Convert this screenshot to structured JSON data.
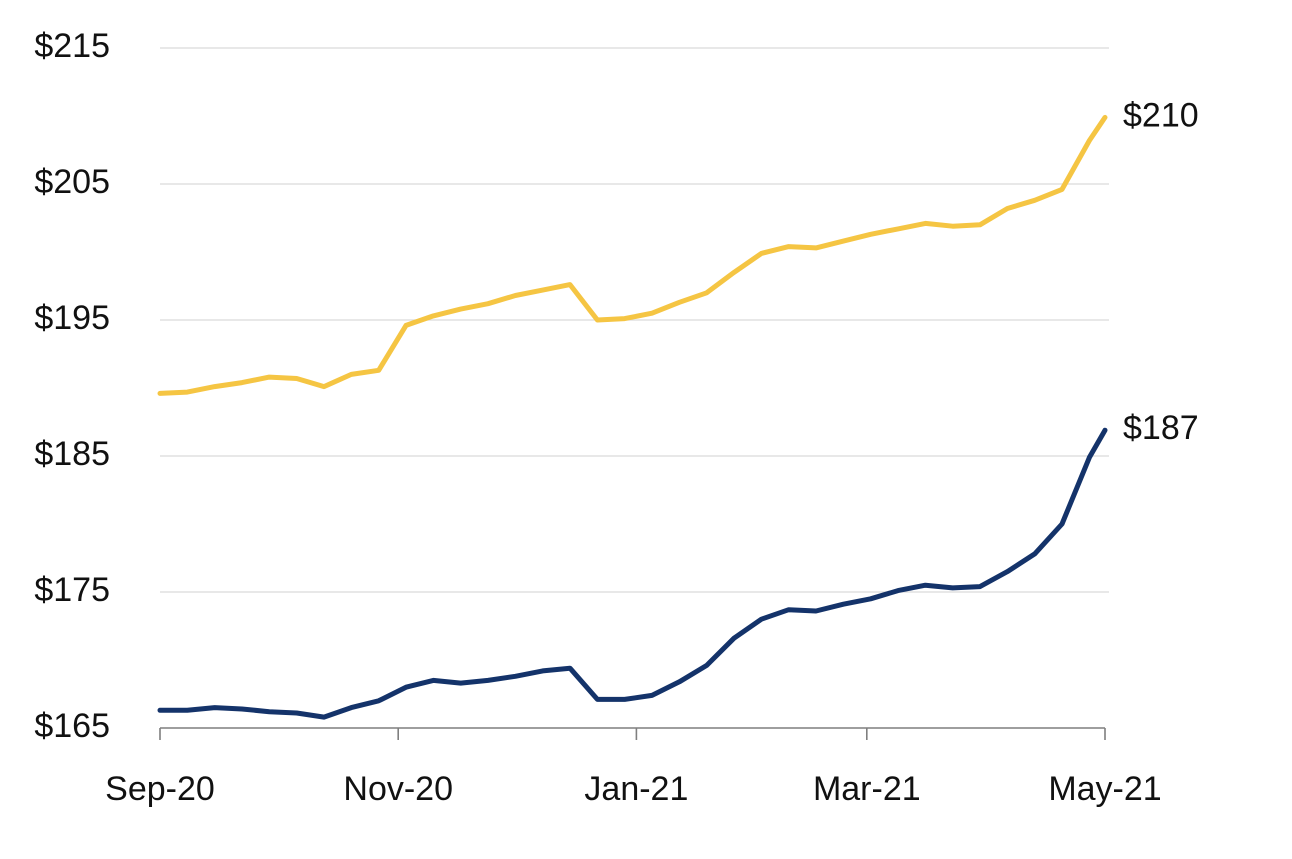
{
  "chart_data": {
    "type": "line",
    "y_tick_labels": [
      "$165",
      "$175",
      "$185",
      "$195",
      "$205",
      "$215"
    ],
    "y_tick_values": [
      165,
      175,
      185,
      195,
      205,
      215
    ],
    "ylim": [
      165,
      215
    ],
    "x_tick_labels": [
      "Sep-20",
      "Nov-20",
      "Jan-21",
      "Mar-21",
      "May-21"
    ],
    "x_tick_dates": [
      "2020-09-01",
      "2020-11-01",
      "2021-01-01",
      "2021-03-01",
      "2021-05-01"
    ],
    "xlim": [
      "2020-09-01",
      "2021-05-01"
    ],
    "grid": true,
    "series": [
      {
        "color": "#f5c543",
        "end_label": "$210",
        "points": [
          [
            "2020-09-01",
            189.6
          ],
          [
            "2020-09-08",
            189.7
          ],
          [
            "2020-09-15",
            190.1
          ],
          [
            "2020-09-22",
            190.4
          ],
          [
            "2020-09-29",
            190.8
          ],
          [
            "2020-10-06",
            190.7
          ],
          [
            "2020-10-13",
            190.1
          ],
          [
            "2020-10-20",
            191.0
          ],
          [
            "2020-10-27",
            191.3
          ],
          [
            "2020-11-03",
            194.6
          ],
          [
            "2020-11-10",
            195.3
          ],
          [
            "2020-11-17",
            195.8
          ],
          [
            "2020-11-24",
            196.2
          ],
          [
            "2020-12-01",
            196.8
          ],
          [
            "2020-12-08",
            197.2
          ],
          [
            "2020-12-15",
            197.6
          ],
          [
            "2020-12-22",
            195.0
          ],
          [
            "2020-12-29",
            195.1
          ],
          [
            "2021-01-05",
            195.5
          ],
          [
            "2021-01-12",
            196.3
          ],
          [
            "2021-01-19",
            197.0
          ],
          [
            "2021-01-26",
            198.5
          ],
          [
            "2021-02-02",
            199.9
          ],
          [
            "2021-02-09",
            200.4
          ],
          [
            "2021-02-16",
            200.3
          ],
          [
            "2021-02-23",
            200.8
          ],
          [
            "2021-03-02",
            201.3
          ],
          [
            "2021-03-09",
            201.7
          ],
          [
            "2021-03-16",
            202.1
          ],
          [
            "2021-03-23",
            201.9
          ],
          [
            "2021-03-30",
            202.0
          ],
          [
            "2021-04-06",
            203.2
          ],
          [
            "2021-04-13",
            203.8
          ],
          [
            "2021-04-20",
            204.6
          ],
          [
            "2021-04-27",
            208.2
          ],
          [
            "2021-05-01",
            209.9
          ]
        ]
      },
      {
        "color": "#14336a",
        "end_label": "$187",
        "points": [
          [
            "2020-09-01",
            166.3
          ],
          [
            "2020-09-08",
            166.3
          ],
          [
            "2020-09-15",
            166.5
          ],
          [
            "2020-09-22",
            166.4
          ],
          [
            "2020-09-29",
            166.2
          ],
          [
            "2020-10-06",
            166.1
          ],
          [
            "2020-10-13",
            165.8
          ],
          [
            "2020-10-20",
            166.5
          ],
          [
            "2020-10-27",
            167.0
          ],
          [
            "2020-11-03",
            168.0
          ],
          [
            "2020-11-10",
            168.5
          ],
          [
            "2020-11-17",
            168.3
          ],
          [
            "2020-11-24",
            168.5
          ],
          [
            "2020-12-01",
            168.8
          ],
          [
            "2020-12-08",
            169.2
          ],
          [
            "2020-12-15",
            169.4
          ],
          [
            "2020-12-22",
            167.1
          ],
          [
            "2020-12-29",
            167.1
          ],
          [
            "2021-01-05",
            167.4
          ],
          [
            "2021-01-12",
            168.4
          ],
          [
            "2021-01-19",
            169.6
          ],
          [
            "2021-01-26",
            171.6
          ],
          [
            "2021-02-02",
            173.0
          ],
          [
            "2021-02-09",
            173.7
          ],
          [
            "2021-02-16",
            173.6
          ],
          [
            "2021-02-23",
            174.1
          ],
          [
            "2021-03-02",
            174.5
          ],
          [
            "2021-03-09",
            175.1
          ],
          [
            "2021-03-16",
            175.5
          ],
          [
            "2021-03-23",
            175.3
          ],
          [
            "2021-03-30",
            175.4
          ],
          [
            "2021-04-06",
            176.5
          ],
          [
            "2021-04-13",
            177.8
          ],
          [
            "2021-04-20",
            180.0
          ],
          [
            "2021-04-27",
            184.9
          ],
          [
            "2021-05-01",
            186.9
          ]
        ]
      }
    ]
  }
}
